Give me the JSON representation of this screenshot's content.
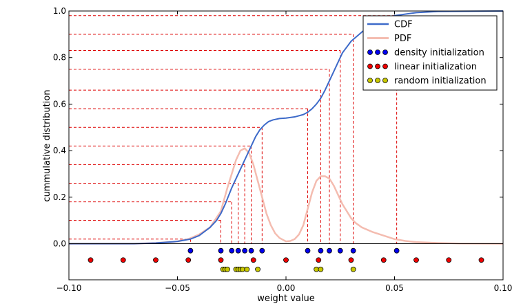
{
  "chart_data": {
    "type": "line",
    "title": "",
    "xlabel": "weight value",
    "ylabel": "cummulative distribution",
    "xlim": [
      -0.1,
      0.1
    ],
    "ylim": [
      -0.155,
      1.0
    ],
    "x_ticks": [
      -0.1,
      -0.05,
      0.0,
      0.05,
      0.1
    ],
    "x_tick_labels": [
      "−0.10",
      "−0.05",
      "0.00",
      "0.05",
      "0.10"
    ],
    "y_ticks": [
      0.0,
      0.2,
      0.4,
      0.6,
      0.8,
      1.0
    ],
    "y_tick_labels": [
      "0.0",
      "0.2",
      "0.4",
      "0.6",
      "0.8",
      "1.0"
    ],
    "grid": false,
    "legend_position": "top-right",
    "colors": {
      "cdf": "#3d6ac9",
      "pdf": "#f4bcb0",
      "density": "#0000ee",
      "linear": "#ee0000",
      "random": "#c8c800",
      "guide": "#dd0000"
    },
    "series": [
      {
        "name": "CDF",
        "x": [
          -0.1,
          -0.07,
          -0.06,
          -0.05,
          -0.044,
          -0.04,
          -0.035,
          -0.032,
          -0.03,
          -0.028,
          -0.025,
          -0.022,
          -0.02,
          -0.018,
          -0.016,
          -0.014,
          -0.012,
          -0.01,
          -0.008,
          -0.006,
          -0.003,
          0.0,
          0.004,
          0.008,
          0.01,
          0.012,
          0.014,
          0.016,
          0.018,
          0.02,
          0.022,
          0.024,
          0.026,
          0.03,
          0.035,
          0.04,
          0.05,
          0.06,
          0.07,
          0.1
        ],
        "y": [
          0.0,
          0.0,
          0.003,
          0.01,
          0.02,
          0.035,
          0.07,
          0.1,
          0.13,
          0.17,
          0.24,
          0.3,
          0.34,
          0.38,
          0.42,
          0.46,
          0.49,
          0.51,
          0.525,
          0.532,
          0.538,
          0.54,
          0.545,
          0.555,
          0.565,
          0.58,
          0.6,
          0.625,
          0.66,
          0.7,
          0.74,
          0.78,
          0.82,
          0.87,
          0.91,
          0.945,
          0.98,
          0.993,
          0.998,
          1.0
        ]
      },
      {
        "name": "PDF",
        "x": [
          -0.1,
          -0.07,
          -0.06,
          -0.05,
          -0.045,
          -0.04,
          -0.035,
          -0.03,
          -0.027,
          -0.025,
          -0.023,
          -0.021,
          -0.019,
          -0.017,
          -0.015,
          -0.013,
          -0.011,
          -0.009,
          -0.007,
          -0.005,
          -0.003,
          -0.001,
          0.0,
          0.002,
          0.004,
          0.006,
          0.008,
          0.01,
          0.012,
          0.014,
          0.016,
          0.018,
          0.02,
          0.022,
          0.024,
          0.026,
          0.028,
          0.03,
          0.032,
          0.035,
          0.04,
          0.045,
          0.05,
          0.055,
          0.06,
          0.07,
          0.08,
          0.1
        ],
        "y": [
          0.0,
          0.0,
          0.003,
          0.01,
          0.02,
          0.04,
          0.07,
          0.14,
          0.24,
          0.3,
          0.36,
          0.4,
          0.41,
          0.39,
          0.34,
          0.27,
          0.2,
          0.13,
          0.08,
          0.045,
          0.025,
          0.015,
          0.01,
          0.012,
          0.02,
          0.04,
          0.08,
          0.15,
          0.22,
          0.27,
          0.29,
          0.29,
          0.28,
          0.25,
          0.21,
          0.17,
          0.14,
          0.11,
          0.09,
          0.07,
          0.05,
          0.035,
          0.02,
          0.012,
          0.007,
          0.003,
          0.001,
          0.0
        ]
      },
      {
        "name": "density initialization",
        "x": [
          -0.044,
          -0.03,
          -0.025,
          -0.022,
          -0.019,
          -0.016,
          -0.011,
          0.01,
          0.016,
          0.02,
          0.025,
          0.031,
          0.051
        ],
        "y": [
          -0.03,
          -0.03,
          -0.03,
          -0.03,
          -0.03,
          -0.03,
          -0.03,
          -0.03,
          -0.03,
          -0.03,
          -0.03,
          -0.03,
          -0.03
        ]
      },
      {
        "name": "linear initialization",
        "x": [
          -0.09,
          -0.075,
          -0.06,
          -0.045,
          -0.03,
          -0.015,
          0.0,
          0.015,
          0.03,
          0.045,
          0.06,
          0.075,
          0.09
        ],
        "y": [
          -0.07,
          -0.07,
          -0.07,
          -0.07,
          -0.07,
          -0.07,
          -0.07,
          -0.07,
          -0.07,
          -0.07,
          -0.07,
          -0.07,
          -0.07
        ]
      },
      {
        "name": "random initialization",
        "x": [
          -0.029,
          -0.028,
          -0.027,
          -0.023,
          -0.022,
          -0.021,
          -0.02,
          -0.018,
          -0.013,
          0.014,
          0.016,
          0.031
        ],
        "y": [
          -0.11,
          -0.11,
          -0.11,
          -0.11,
          -0.11,
          -0.11,
          -0.11,
          -0.11,
          -0.11,
          -0.11,
          -0.11,
          -0.11
        ]
      }
    ],
    "guide_lines": [
      {
        "x": -0.044,
        "y": 0.02
      },
      {
        "x": -0.03,
        "y": 0.1
      },
      {
        "x": -0.025,
        "y": 0.18
      },
      {
        "x": -0.022,
        "y": 0.26
      },
      {
        "x": -0.019,
        "y": 0.34
      },
      {
        "x": -0.016,
        "y": 0.42
      },
      {
        "x": -0.011,
        "y": 0.5
      },
      {
        "x": 0.01,
        "y": 0.58
      },
      {
        "x": 0.016,
        "y": 0.66
      },
      {
        "x": 0.02,
        "y": 0.75
      },
      {
        "x": 0.025,
        "y": 0.83
      },
      {
        "x": 0.031,
        "y": 0.9
      },
      {
        "x": 0.051,
        "y": 0.98
      }
    ]
  }
}
